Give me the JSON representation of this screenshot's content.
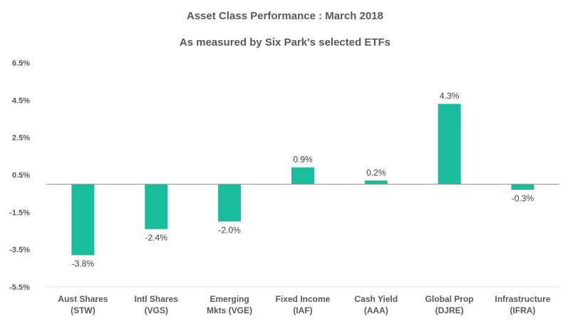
{
  "chart_data": {
    "type": "bar",
    "title": "Asset Class Performance : March 2018",
    "subtitle": "As measured by Six Park's selected ETFs",
    "categories": [
      [
        "Aust Shares",
        "(STW)"
      ],
      [
        "Intl Shares",
        "(VGS)"
      ],
      [
        "Emerging",
        "Mkts (VGE)"
      ],
      [
        "Fixed Income",
        "(IAF)"
      ],
      [
        "Cash Yield",
        "(AAA)"
      ],
      [
        "Global Prop",
        "(DJRE)"
      ],
      [
        "Infrastructure",
        "(IFRA)"
      ]
    ],
    "values": [
      -3.8,
      -2.4,
      -2.0,
      0.9,
      0.2,
      4.3,
      -0.3
    ],
    "data_labels": [
      "-3.8%",
      "-2.4%",
      "-2.0%",
      "0.9%",
      "0.2%",
      "4.3%",
      "-0.3%"
    ],
    "yticks": [
      6.5,
      4.5,
      2.5,
      0.5,
      -1.5,
      -3.5,
      -5.5
    ],
    "ytick_labels": [
      "6.5%",
      "4.5%",
      "2.5%",
      "0.5%",
      "-1.5%",
      "-3.5%",
      "-5.5%"
    ],
    "ylim": [
      -5.5,
      6.5
    ],
    "xlabel": "",
    "ylabel": "",
    "grid": false,
    "legend": "none",
    "bar_color": "#1ABC9C"
  }
}
